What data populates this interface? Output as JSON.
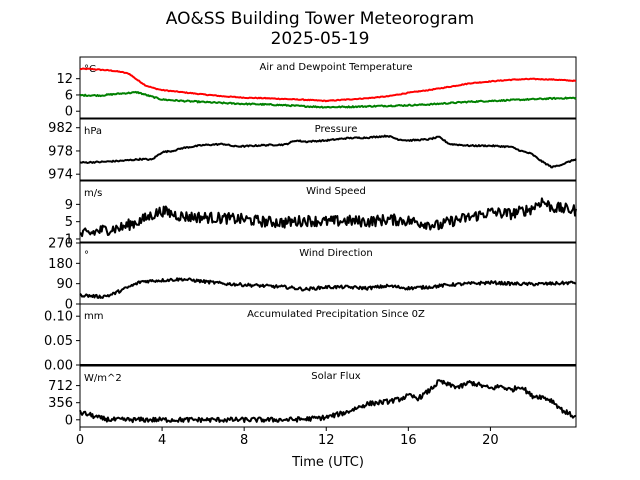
{
  "chart_data": {
    "type": "line",
    "title": "AO&SS Building Tower Meteorogram",
    "subtitle": "2025-05-19",
    "xlabel": "Time (UTC)",
    "xlim": [
      0,
      24.17
    ],
    "xticks": [
      0,
      4,
      8,
      12,
      16,
      20
    ],
    "panels": [
      {
        "title": "Air and Dewpoint Temperature",
        "unit": "°C",
        "ylim": [
          -2.5,
          20
        ],
        "yticks": [
          0,
          6,
          12
        ],
        "series": [
          {
            "color": "#ff0000",
            "jitter": 0.15,
            "points": [
              [
                0,
                15.6
              ],
              [
                0.5,
                15.6
              ],
              [
                1,
                15.3
              ],
              [
                1.5,
                15.0
              ],
              [
                2,
                14.5
              ],
              [
                2.4,
                13.8
              ],
              [
                2.8,
                11.5
              ],
              [
                3.2,
                9.5
              ],
              [
                3.6,
                8.5
              ],
              [
                4,
                7.8
              ],
              [
                5,
                7.0
              ],
              [
                6,
                6.2
              ],
              [
                7,
                5.5
              ],
              [
                8,
                5.0
              ],
              [
                9,
                4.8
              ],
              [
                10,
                4.5
              ],
              [
                11,
                4.2
              ],
              [
                12,
                3.8
              ],
              [
                13,
                4.3
              ],
              [
                14,
                4.8
              ],
              [
                15,
                5.5
              ],
              [
                16,
                6.8
              ],
              [
                17,
                7.8
              ],
              [
                18,
                9.0
              ],
              [
                19,
                10.3
              ],
              [
                20,
                11.0
              ],
              [
                21,
                11.6
              ],
              [
                22,
                11.9
              ],
              [
                23,
                11.7
              ],
              [
                24.17,
                11.2
              ]
            ]
          },
          {
            "color": "#008000",
            "jitter": 0.25,
            "points": [
              [
                0,
                5.9
              ],
              [
                1,
                5.8
              ],
              [
                1.8,
                6.4
              ],
              [
                2.8,
                7.0
              ],
              [
                3.3,
                5.8
              ],
              [
                4,
                4.3
              ],
              [
                5,
                3.8
              ],
              [
                6,
                3.4
              ],
              [
                7,
                3.0
              ],
              [
                8,
                2.7
              ],
              [
                9,
                2.5
              ],
              [
                10,
                2.2
              ],
              [
                11,
                1.8
              ],
              [
                12,
                1.5
              ],
              [
                13,
                1.6
              ],
              [
                14,
                1.8
              ],
              [
                15,
                2.0
              ],
              [
                16,
                2.2
              ],
              [
                17,
                2.5
              ],
              [
                18,
                3.0
              ],
              [
                19,
                3.5
              ],
              [
                20,
                3.8
              ],
              [
                21,
                4.1
              ],
              [
                22,
                4.4
              ],
              [
                23,
                4.7
              ],
              [
                24.17,
                4.9
              ]
            ]
          }
        ]
      },
      {
        "title": "Pressure",
        "unit": "hPa",
        "ylim": [
          973,
          983.5
        ],
        "yticks": [
          974,
          978,
          982
        ],
        "series": [
          {
            "color": "#000000",
            "jitter": 0.12,
            "points": [
              [
                0,
                976.0
              ],
              [
                1,
                976.1
              ],
              [
                2,
                976.3
              ],
              [
                3,
                976.6
              ],
              [
                3.5,
                976.5
              ],
              [
                4,
                977.8
              ],
              [
                4.5,
                978.0
              ],
              [
                5,
                978.5
              ],
              [
                6,
                979.0
              ],
              [
                7,
                979.2
              ],
              [
                7.5,
                978.8
              ],
              [
                8,
                978.8
              ],
              [
                9,
                979.0
              ],
              [
                10,
                979.1
              ],
              [
                10.5,
                979.8
              ],
              [
                11,
                979.6
              ],
              [
                12,
                979.8
              ],
              [
                13,
                980.2
              ],
              [
                14,
                980.3
              ],
              [
                15,
                980.6
              ],
              [
                15.5,
                980.0
              ],
              [
                16,
                979.8
              ],
              [
                17,
                980.0
              ],
              [
                17.5,
                980.4
              ],
              [
                18,
                979.2
              ],
              [
                19,
                978.9
              ],
              [
                20,
                978.9
              ],
              [
                21,
                978.7
              ],
              [
                21.5,
                978.0
              ],
              [
                22,
                977.5
              ],
              [
                22.5,
                976.2
              ],
              [
                23,
                975.2
              ],
              [
                23.5,
                975.7
              ],
              [
                24.17,
                976.6
              ]
            ]
          }
        ]
      },
      {
        "title": "Wind Speed",
        "unit": "m/s",
        "ylim": [
          0.3,
          14.4
        ],
        "yticks": [
          1,
          5,
          9
        ],
        "series": [
          {
            "color": "#000000",
            "jitter": 1.3,
            "points": [
              [
                0,
                2.0
              ],
              [
                0.5,
                2.3
              ],
              [
                1,
                3.0
              ],
              [
                1.5,
                3.3
              ],
              [
                2,
                3.6
              ],
              [
                2.5,
                4.5
              ],
              [
                3,
                5.3
              ],
              [
                3.5,
                6.5
              ],
              [
                4,
                7.5
              ],
              [
                4.5,
                6.8
              ],
              [
                5,
                6.2
              ],
              [
                6,
                6.0
              ],
              [
                7,
                5.8
              ],
              [
                8,
                5.5
              ],
              [
                9,
                5.0
              ],
              [
                10,
                4.8
              ],
              [
                11,
                5.3
              ],
              [
                12,
                5.0
              ],
              [
                13,
                5.2
              ],
              [
                14,
                5.0
              ],
              [
                15,
                5.5
              ],
              [
                16,
                5.2
              ],
              [
                17,
                4.5
              ],
              [
                17.5,
                4.0
              ],
              [
                18,
                5.0
              ],
              [
                19,
                6.0
              ],
              [
                20,
                7.2
              ],
              [
                21,
                6.8
              ],
              [
                22,
                8.0
              ],
              [
                22.5,
                9.8
              ],
              [
                23,
                8.3
              ],
              [
                24.17,
                7.6
              ]
            ]
          }
        ]
      },
      {
        "title": "Wind Direction",
        "unit": "°",
        "ylim": [
          0,
          270
        ],
        "yticks": [
          0,
          90,
          180,
          270
        ],
        "series": [
          {
            "color": "#000000",
            "jitter": 7,
            "points": [
              [
                0,
                40
              ],
              [
                1,
                32
              ],
              [
                1.5,
                40
              ],
              [
                2,
                60
              ],
              [
                2.5,
                80
              ],
              [
                3,
                100
              ],
              [
                4,
                105
              ],
              [
                5,
                110
              ],
              [
                6,
                100
              ],
              [
                7,
                90
              ],
              [
                8,
                85
              ],
              [
                9,
                80
              ],
              [
                10,
                75
              ],
              [
                11,
                65
              ],
              [
                12,
                75
              ],
              [
                13,
                75
              ],
              [
                14,
                70
              ],
              [
                15,
                80
              ],
              [
                16,
                70
              ],
              [
                17,
                75
              ],
              [
                18,
                85
              ],
              [
                19,
                90
              ],
              [
                20,
                95
              ],
              [
                21,
                90
              ],
              [
                22,
                88
              ],
              [
                23,
                90
              ],
              [
                24.17,
                95
              ]
            ]
          }
        ]
      },
      {
        "title": "Accumulated Precipitation Since 0Z",
        "unit": "mm",
        "ylim": [
          0,
          0.125
        ],
        "yticks": [
          0.0,
          0.05,
          0.1
        ],
        "tickdecimals": 2,
        "series": [
          {
            "color": "#000000",
            "jitter": 0,
            "points": [
              [
                0,
                0
              ],
              [
                24.17,
                0
              ]
            ]
          }
        ]
      },
      {
        "title": "Solar Flux",
        "unit": "W/m^2",
        "ylim": [
          -150,
          1120
        ],
        "yticks": [
          0,
          356,
          712
        ],
        "series": [
          {
            "color": "#000000",
            "jitter": 50,
            "points": [
              [
                0,
                150
              ],
              [
                0.5,
                100
              ],
              [
                1,
                30
              ],
              [
                1.5,
                0
              ],
              [
                2,
                0
              ],
              [
                4,
                0
              ],
              [
                6,
                0
              ],
              [
                8,
                0
              ],
              [
                10,
                0
              ],
              [
                11,
                15
              ],
              [
                12,
                50
              ],
              [
                13,
                160
              ],
              [
                13.5,
                250
              ],
              [
                14,
                330
              ],
              [
                15,
                380
              ],
              [
                15.5,
                420
              ],
              [
                16,
                500
              ],
              [
                16.5,
                450
              ],
              [
                17,
                600
              ],
              [
                17.5,
                800
              ],
              [
                18,
                720
              ],
              [
                18.5,
                680
              ],
              [
                19,
                780
              ],
              [
                19.5,
                720
              ],
              [
                20,
                650
              ],
              [
                20.5,
                700
              ],
              [
                21,
                620
              ],
              [
                21.5,
                700
              ],
              [
                22,
                500
              ],
              [
                22.5,
                480
              ],
              [
                23,
                400
              ],
              [
                23.5,
                200
              ],
              [
                24.17,
                50
              ]
            ]
          }
        ]
      }
    ]
  }
}
